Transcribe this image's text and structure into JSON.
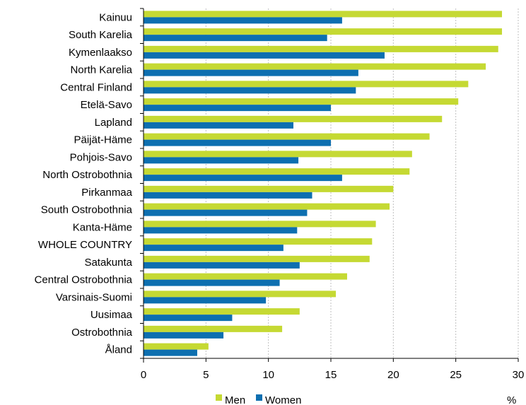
{
  "chart_data": {
    "type": "bar",
    "orientation": "horizontal",
    "categories": [
      "Kainuu",
      "South Karelia",
      "Kymenlaakso",
      "North Karelia",
      "Central Finland",
      "Etelä-Savo",
      "Lapland",
      "Päijät-Häme",
      "Pohjois-Savo",
      "North Ostrobothnia",
      "Pirkanmaa",
      "South Ostrobothnia",
      "Kanta-Häme",
      "WHOLE COUNTRY",
      "Satakunta",
      "Central Ostrobothnia",
      "Varsinais-Suomi",
      "Uusimaa",
      "Ostrobothnia",
      "Åland"
    ],
    "series": [
      {
        "name": "Men",
        "color": "#c5d933",
        "values": [
          28.7,
          28.7,
          28.4,
          27.4,
          26.0,
          25.2,
          23.9,
          22.9,
          21.5,
          21.3,
          20.0,
          19.7,
          18.6,
          18.3,
          18.1,
          16.3,
          15.4,
          12.5,
          11.1,
          5.2
        ]
      },
      {
        "name": "Women",
        "color": "#0d6fb0",
        "values": [
          15.9,
          14.7,
          19.3,
          17.2,
          17.0,
          15.0,
          12.0,
          15.0,
          12.4,
          15.9,
          13.5,
          13.1,
          12.3,
          11.2,
          12.5,
          10.9,
          9.8,
          7.1,
          6.4,
          4.3
        ]
      }
    ],
    "xlim": [
      0,
      30
    ],
    "xticks": [
      "0",
      "5",
      "10",
      "15",
      "20",
      "25",
      "30"
    ],
    "unit": "%",
    "grid": true,
    "legend": "bottom"
  }
}
